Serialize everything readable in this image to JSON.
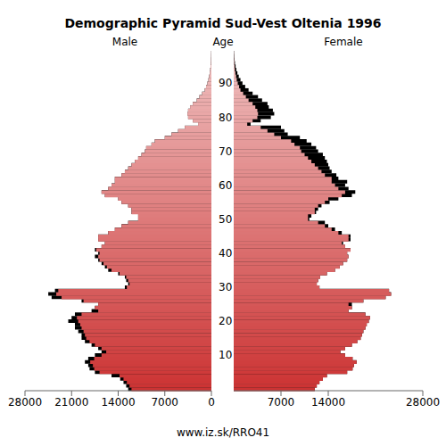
{
  "chart_data": {
    "type": "pyramid",
    "title": "Demographic Pyramid Sud-Vest Oltenia 1996",
    "ylabel": "Age",
    "footer": "www.iz.sk/RRO41",
    "categories": [
      0,
      1,
      2,
      3,
      4,
      5,
      6,
      7,
      8,
      9,
      10,
      11,
      12,
      13,
      14,
      15,
      16,
      17,
      18,
      19,
      20,
      21,
      22,
      23,
      24,
      25,
      26,
      27,
      28,
      29,
      30,
      31,
      32,
      33,
      34,
      35,
      36,
      37,
      38,
      39,
      40,
      41,
      42,
      43,
      44,
      45,
      46,
      47,
      48,
      49,
      50,
      51,
      52,
      53,
      54,
      55,
      56,
      57,
      58,
      59,
      60,
      61,
      62,
      63,
      64,
      65,
      66,
      67,
      68,
      69,
      70,
      71,
      72,
      73,
      74,
      75,
      76,
      77,
      78,
      79,
      80,
      81,
      82,
      83,
      84,
      85,
      86,
      87,
      88,
      89,
      90,
      91,
      92,
      93,
      94,
      95,
      96,
      97,
      98,
      99
    ],
    "yticks": [
      10,
      20,
      30,
      40,
      50,
      60,
      70,
      80,
      90
    ],
    "xlim": [
      0,
      28000
    ],
    "xticks_male": [
      28000,
      21000,
      14000,
      7000,
      0
    ],
    "xticks_female": [
      7000,
      14000,
      28000
    ],
    "series": [
      {
        "name": "Male",
        "color": "#cc3333",
        "values": [
          12500,
          12800,
          13200,
          13700,
          15000,
          17500,
          18300,
          18500,
          19000,
          18500,
          17500,
          16500,
          17000,
          18000,
          19000,
          19500,
          19500,
          20000,
          20500,
          20500,
          21500,
          21000,
          20500,
          18000,
          17500,
          17000,
          19500,
          24000,
          24500,
          23500,
          13000,
          12500,
          12800,
          13000,
          14000,
          15500,
          16000,
          16500,
          17000,
          17500,
          17000,
          17500,
          16500,
          16000,
          17000,
          17000,
          15500,
          14500,
          13500,
          12500,
          11000,
          11000,
          12000,
          12000,
          12500,
          13500,
          14000,
          16000,
          16500,
          15500,
          15000,
          14500,
          14500,
          13500,
          13000,
          12500,
          12000,
          11500,
          11000,
          10500,
          10000,
          9800,
          9000,
          8500,
          7000,
          6000,
          5000,
          4000,
          2000,
          2800,
          3500,
          3600,
          3500,
          3200,
          2800,
          2200,
          1800,
          1400,
          1000,
          800,
          600,
          450,
          350,
          250,
          180,
          130,
          90,
          60,
          40,
          30
        ]
      },
      {
        "name": "Female",
        "color": "#cc3333",
        "values": [
          12000,
          12300,
          12700,
          13200,
          13800,
          16800,
          17600,
          17800,
          18200,
          17600,
          16500,
          15800,
          16500,
          17500,
          18300,
          18800,
          19000,
          19200,
          19500,
          19700,
          20000,
          20200,
          19500,
          17000,
          17500,
          17500,
          19200,
          22500,
          23300,
          23000,
          12700,
          12300,
          12500,
          12800,
          13800,
          15000,
          15700,
          16200,
          16800,
          17000,
          16800,
          17300,
          16500,
          16200,
          17300,
          17300,
          16000,
          15000,
          14000,
          13500,
          11200,
          11500,
          12200,
          12500,
          13000,
          14200,
          15500,
          17500,
          18000,
          17000,
          16500,
          16800,
          15500,
          15200,
          14500,
          14200,
          14000,
          13800,
          13500,
          13200,
          12500,
          12200,
          11500,
          10800,
          9800,
          8000,
          7500,
          7000,
          2500,
          4000,
          5500,
          6000,
          5800,
          5200,
          5000,
          4200,
          3600,
          2800,
          2200,
          1700,
          1300,
          1000,
          750,
          550,
          400,
          280,
          190,
          120,
          80,
          50
        ]
      }
    ]
  }
}
